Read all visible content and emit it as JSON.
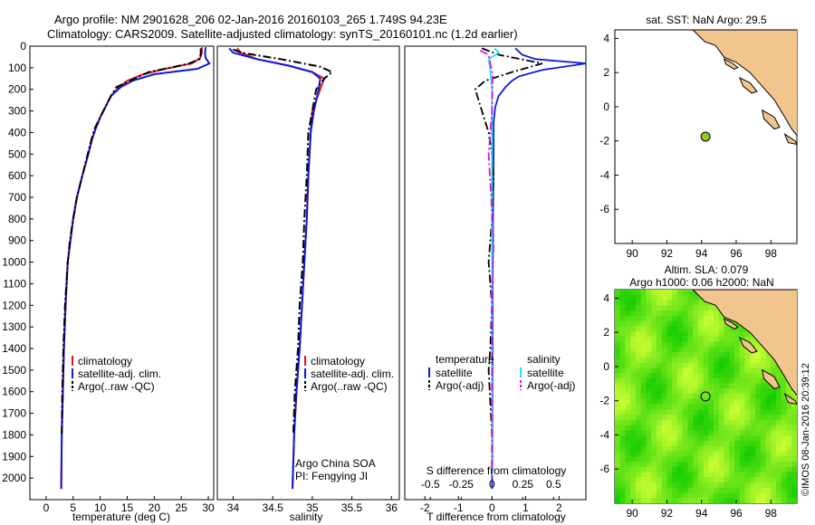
{
  "header": {
    "title_line1": "Argo profile: NM 2901628_206 02-Jan-2016 20160103_265 1.749S 94.23E",
    "title_line2": "Climatology: CARS2009. Satellite-adjusted climatology: synTS_20160101.nc (1.2d earlier)"
  },
  "footer": {
    "credit": "©IMOS 08-Jan-2016 20:39:12"
  },
  "colors": {
    "climatology": "#ee1111",
    "satellite": "#0a1ae0",
    "argo": "#000000",
    "salinity_sat": "#22e0f0",
    "salinity_argo": "#e010e0",
    "sea_light": "#ccff33",
    "sea_dark": "#11cc00",
    "land": "#f2c48e",
    "argo_marker": "#88cc22"
  },
  "chart_data": [
    {
      "type": "line",
      "panel": "temperature",
      "xlabel": "temperature (deg C)",
      "ylabel": "",
      "xlim": [
        -3,
        31
      ],
      "ylim": [
        2100,
        0
      ],
      "xticks": [
        0,
        5,
        10,
        15,
        20,
        25,
        30
      ],
      "yticks": [
        0,
        100,
        200,
        300,
        400,
        500,
        600,
        700,
        800,
        900,
        1000,
        1100,
        1200,
        1300,
        1400,
        1500,
        1600,
        1700,
        1800,
        1900,
        2000
      ],
      "legend": [
        "climatology",
        "satellite-adj. clim.",
        "Argo(..raw -QC)"
      ],
      "legend_position": "lower-left",
      "series": [
        {
          "name": "climatology",
          "style": "solid",
          "color_key": "climatology",
          "x": [
            28.8,
            28.8,
            28.5,
            27,
            22,
            18,
            15,
            13.5,
            12,
            11,
            10,
            9.2,
            8.5,
            7.8,
            6.7,
            5.7,
            5,
            4.5,
            4,
            3.6,
            3.3,
            3.1,
            2.9,
            2.8
          ],
          "y": [
            5,
            30,
            55,
            80,
            105,
            130,
            160,
            190,
            230,
            280,
            330,
            380,
            430,
            500,
            600,
            700,
            800,
            900,
            1000,
            1200,
            1400,
            1600,
            1800,
            2050
          ]
        },
        {
          "name": "satellite-adj. clim.",
          "style": "solid",
          "color_key": "satellite",
          "x": [
            29.5,
            29.4,
            29.5,
            30.2,
            28,
            20,
            16,
            13.8,
            12,
            11,
            10,
            9.2,
            8.5,
            7.8,
            6.7,
            5.7,
            5,
            4.5,
            4,
            3.6,
            3.3,
            3.1,
            2.9,
            2.8
          ],
          "y": [
            5,
            30,
            55,
            80,
            105,
            130,
            160,
            190,
            230,
            280,
            330,
            380,
            430,
            500,
            600,
            700,
            800,
            900,
            1000,
            1200,
            1400,
            1600,
            1800,
            2050
          ]
        },
        {
          "name": "Argo(..raw -QC)",
          "style": "dashed",
          "color_key": "argo",
          "x": [
            28.6,
            28.6,
            28.4,
            26.5,
            23,
            19,
            15.5,
            13,
            12,
            11,
            10,
            9,
            8.4,
            7.7,
            6.7,
            5.7,
            5,
            4.4,
            4,
            3.5,
            3.2,
            3.0,
            2.9
          ],
          "y": [
            10,
            35,
            60,
            80,
            100,
            120,
            160,
            190,
            230,
            280,
            330,
            380,
            430,
            500,
            600,
            700,
            800,
            900,
            1000,
            1200,
            1400,
            1600,
            1800
          ]
        }
      ]
    },
    {
      "type": "line",
      "panel": "salinity",
      "xlabel": "salinity",
      "xlim": [
        33.8,
        36.1
      ],
      "ylim": [
        2100,
        0
      ],
      "xticks": [
        34,
        34.5,
        35,
        35.5,
        36
      ],
      "xticklabels": [
        "34",
        "34.5",
        "35",
        "35.5",
        "36"
      ],
      "legend": [
        "climatology",
        "satellite-adj. clim.",
        "Argo(..raw -QC)"
      ],
      "legend_position": "lower-right",
      "annotation": [
        "Argo China SOA",
        "PI: Fengying JI"
      ],
      "series": [
        {
          "name": "climatology",
          "style": "solid",
          "color_key": "climatology",
          "x": [
            34.05,
            34.1,
            34.3,
            34.7,
            35.0,
            35.15,
            35.1,
            35.0,
            34.98,
            34.95,
            34.93,
            34.9,
            34.87,
            34.84,
            34.8,
            34.77,
            34.75
          ],
          "y": [
            10,
            30,
            60,
            90,
            120,
            150,
            200,
            300,
            400,
            600,
            800,
            1000,
            1200,
            1400,
            1600,
            1800,
            2050
          ]
        },
        {
          "name": "satellite-adj. clim.",
          "style": "solid",
          "color_key": "satellite",
          "x": [
            33.95,
            34.0,
            34.3,
            34.7,
            35.0,
            35.1,
            35.08,
            35.02,
            34.98,
            34.95,
            34.93,
            34.9,
            34.87,
            34.84,
            34.8,
            34.77,
            34.75
          ],
          "y": [
            10,
            30,
            60,
            90,
            120,
            150,
            200,
            300,
            400,
            600,
            800,
            1000,
            1200,
            1400,
            1600,
            1800,
            2050
          ]
        },
        {
          "name": "Argo(..raw -QC)",
          "style": "dashed",
          "color_key": "argo",
          "x": [
            34.0,
            34.1,
            34.6,
            35.1,
            35.25,
            35.15,
            35.05,
            35.0,
            34.95,
            34.93,
            34.9,
            34.88,
            34.84,
            34.82,
            34.78,
            34.76
          ],
          "y": [
            15,
            30,
            60,
            95,
            120,
            150,
            200,
            300,
            400,
            600,
            800,
            1000,
            1200,
            1400,
            1600,
            1800
          ]
        }
      ]
    },
    {
      "type": "line",
      "panel": "differences",
      "xlabel": "T difference from climatology",
      "xlabel_top": "S difference from climatology",
      "xlim": [
        -2.6,
        2.8
      ],
      "ylim": [
        2100,
        0
      ],
      "xticks": [
        -2,
        -1,
        0,
        1,
        2
      ],
      "s_xticks": [
        -0.5,
        -0.25,
        0,
        0.25,
        0.5
      ],
      "s_xticklabels": [
        "-0.5",
        "-0.25",
        "0",
        "0.25",
        "0.5"
      ],
      "legend_groups": [
        {
          "title": "temperature",
          "items": [
            "satellite",
            "Argo(-adj)"
          ]
        },
        {
          "title": "salinity",
          "items": [
            "satellite",
            "Argo(-adj)"
          ]
        }
      ],
      "series": [
        {
          "name": "temperature satellite",
          "style": "solid",
          "color_key": "satellite",
          "x": [
            0.7,
            0.9,
            1.3,
            2.8,
            1.5,
            0.8,
            0.6,
            0.4,
            0.2,
            0.1,
            0.05,
            0.05,
            0.03,
            0.02,
            0.02,
            0.01,
            0.01,
            0.0
          ],
          "y": [
            10,
            40,
            60,
            80,
            110,
            140,
            160,
            190,
            230,
            280,
            350,
            500,
            800,
            1100,
            1400,
            1700,
            1900,
            2050
          ]
        },
        {
          "name": "temperature Argo(-adj)",
          "style": "dashed",
          "color_key": "argo",
          "x": [
            -0.3,
            0.2,
            1.5,
            0.6,
            -0.2,
            -0.5,
            -0.3,
            -0.1,
            0.0,
            0.05,
            0.0,
            -0.1,
            0.0,
            -0.05,
            -0.1,
            0.0,
            0.0
          ],
          "y": [
            10,
            40,
            80,
            120,
            160,
            200,
            300,
            400,
            500,
            600,
            800,
            1000,
            1200,
            1400,
            1500,
            1800,
            2000
          ]
        },
        {
          "name": "salinity satellite",
          "style": "solid",
          "color_key": "salinity_sat",
          "x": [
            0.08,
            0.2,
            -0.1,
            -0.05,
            0.0,
            0.0,
            0.0,
            0.0,
            0.0,
            0.0
          ],
          "y": [
            10,
            30,
            60,
            110,
            200,
            400,
            800,
            1200,
            1600,
            2000
          ]
        },
        {
          "name": "salinity Argo(-adj)",
          "style": "dashed",
          "color_key": "salinity_argo",
          "x": [
            -0.35,
            -0.1,
            -0.05,
            0.02,
            0.0,
            -0.1,
            0.05,
            0.0,
            0.0,
            0.0
          ],
          "y": [
            20,
            40,
            80,
            130,
            300,
            500,
            900,
            1200,
            1600,
            2000
          ]
        }
      ]
    },
    {
      "type": "map",
      "panel": "sst_map",
      "title": "sat. SST: NaN Argo: 29.5",
      "xlim": [
        89,
        99.5
      ],
      "ylim": [
        -8,
        4.5
      ],
      "xticks": [
        90,
        92,
        94,
        96,
        98
      ],
      "yticks": [
        -6,
        -4,
        -2,
        0,
        2,
        4
      ],
      "argo_position": {
        "lon": 94.23,
        "lat": -1.749
      }
    },
    {
      "type": "heatmap",
      "panel": "sla_map",
      "title_line1": "Altim. SLA: 0.079",
      "title_line2": "Argo h1000: 0.06 h2000: NaN",
      "xlim": [
        89,
        99.5
      ],
      "ylim": [
        -8,
        4.5
      ],
      "xticks": [
        90,
        92,
        94,
        96,
        98
      ],
      "yticks": [
        -6,
        -4,
        -2,
        0,
        2,
        4
      ],
      "argo_position": {
        "lon": 94.23,
        "lat": -1.749
      }
    }
  ]
}
